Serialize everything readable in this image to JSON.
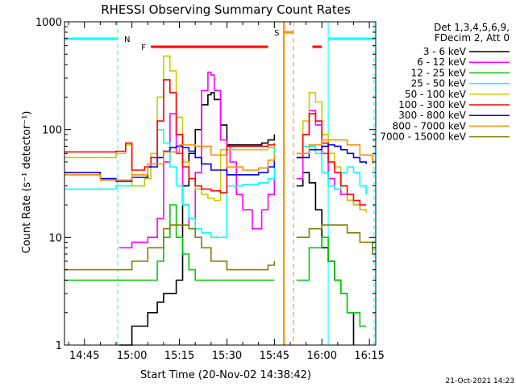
{
  "colors": {
    "frame": "#000000",
    "night": "#00FFFF",
    "flare": "#FF0000",
    "saa": "#FF8C00"
  },
  "chart_data": {
    "type": "line",
    "title": "RHESSI Observing Summary Count Rates",
    "xlabel": "Start Time (20-Nov-02 14:38:42)",
    "ylabel": "Count Rate (s⁻¹ detector⁻¹)",
    "yscale": "log",
    "ylim": [
      1,
      1000
    ],
    "xlim": [
      "14:38:42",
      "16:17:00"
    ],
    "x_ticks": [
      "14:45",
      "15:00",
      "15:15",
      "15:30",
      "15:45",
      "16:00",
      "16:15"
    ],
    "y_ticks": [
      "1",
      "10",
      "100",
      "1000"
    ],
    "legend_position": "top-right",
    "legend_header": [
      "Det 1,3,4,5,6,9,",
      "FDecim 2, Att 0"
    ],
    "footer_date": "21-Oct-2021 14:23",
    "grid": false,
    "annotations": [
      {
        "label": "N",
        "color": "#00FFFF",
        "kind": "night",
        "ranges": [
          [
            "14:38:42",
            "14:55:30"
          ],
          [
            "16:02:00",
            "16:16:30"
          ]
        ]
      },
      {
        "label": "F",
        "color": "#FF0000",
        "kind": "flare",
        "ranges": [
          [
            "15:06:00",
            "15:43:00"
          ],
          [
            "15:57:00",
            "16:00:00"
          ]
        ]
      },
      {
        "label": "S",
        "color": "#FF8C00",
        "kind": "saa",
        "ranges": [
          [
            "15:48:00",
            "15:51:00"
          ]
        ]
      }
    ],
    "series": [
      {
        "name": "3 - 6 keV",
        "color": "#000000",
        "x": [
          "14:38:42",
          "14:50",
          "14:55",
          "14:56",
          "15:00",
          "15:05",
          "15:08",
          "15:10",
          "15:12",
          "15:14",
          "15:16",
          "15:18",
          "15:20",
          "15:22",
          "15:24",
          "15:25",
          "15:26",
          "15:28",
          "15:30",
          "15:31",
          "15:33",
          "15:35",
          "15:38",
          "15:41",
          "15:43",
          "15:45",
          "15:46",
          "15:47",
          "15:50",
          "15:52",
          "15:54",
          "15:56",
          "15:58",
          "16:00",
          "16:02",
          "16:04",
          "16:06",
          "16:08",
          "16:10",
          "16:12",
          "16:14",
          "16:16"
        ],
        "y": [
          null,
          null,
          null,
          1,
          1.5,
          2,
          2.5,
          3,
          3,
          4,
          30,
          60,
          100,
          170,
          210,
          220,
          190,
          110,
          72,
          72,
          72,
          72,
          72,
          75,
          80,
          90,
          null,
          null,
          null,
          30,
          40,
          32,
          18,
          8,
          6,
          4,
          3,
          2,
          1,
          null,
          null,
          null
        ]
      },
      {
        "name": "6 - 12 keV",
        "color": "#FF00FF",
        "x": [
          "14:38:42",
          "14:55",
          "14:56",
          "15:00",
          "15:05",
          "15:08",
          "15:10",
          "15:12",
          "15:14",
          "15:16",
          "15:18",
          "15:20",
          "15:22",
          "15:24",
          "15:25",
          "15:26",
          "15:28",
          "15:30",
          "15:31",
          "15:33",
          "15:35",
          "15:38",
          "15:41",
          "15:43",
          "15:45",
          "15:46",
          "15:47",
          "15:50",
          "15:52",
          "15:54",
          "15:56",
          "15:58",
          "16:00",
          "16:02",
          "16:04",
          "16:06",
          "16:08",
          "16:10",
          "16:12",
          "16:14",
          "16:16"
        ],
        "y": [
          null,
          null,
          8,
          9,
          10,
          15,
          50,
          140,
          60,
          20,
          12,
          40,
          230,
          340,
          320,
          230,
          80,
          70,
          50,
          25,
          18,
          12,
          18,
          25,
          40,
          null,
          null,
          null,
          35,
          90,
          150,
          110,
          60,
          35,
          28,
          25,
          22,
          20,
          18,
          18,
          null
        ]
      },
      {
        "name": "12 - 25 keV",
        "color": "#00CC00",
        "x": [
          "14:38:42",
          "14:50",
          "14:55",
          "15:00",
          "15:05",
          "15:08",
          "15:10",
          "15:12",
          "15:14",
          "15:16",
          "15:18",
          "15:20",
          "15:25",
          "15:30",
          "15:35",
          "15:40",
          "15:45",
          "15:46",
          "15:47",
          "15:50",
          "15:52",
          "15:56",
          "16:00",
          "16:02",
          "16:04",
          "16:06",
          "16:08",
          "16:10",
          "16:12",
          "16:14",
          "16:16"
        ],
        "y": [
          4,
          4,
          4,
          4,
          4,
          6,
          10,
          20,
          10,
          7,
          5,
          4,
          4,
          4,
          4,
          4,
          4,
          null,
          null,
          null,
          4,
          8,
          10,
          6,
          4,
          3,
          2,
          2,
          1.5,
          1.5,
          null
        ]
      },
      {
        "name": "25 - 50 keV",
        "color": "#00FFFF",
        "x": [
          "14:38:42",
          "14:50",
          "14:55",
          "15:00",
          "15:04",
          "15:06",
          "15:08",
          "15:10",
          "15:12",
          "15:14",
          "15:16",
          "15:18",
          "15:20",
          "15:22",
          "15:25",
          "15:30",
          "15:35",
          "15:40",
          "15:43",
          "15:45",
          "15:46",
          "15:47",
          "15:50",
          "15:52",
          "15:54",
          "15:56",
          "15:58",
          "16:00",
          "16:02",
          "16:04",
          "16:06",
          "16:08",
          "16:10",
          "16:12",
          "16:14",
          "16:16"
        ],
        "y": [
          28,
          28,
          30,
          30,
          35,
          60,
          100,
          75,
          45,
          30,
          20,
          15,
          12,
          11,
          10,
          30,
          31,
          32,
          35,
          70,
          null,
          null,
          null,
          55,
          70,
          70,
          60,
          40,
          30,
          28,
          40,
          45,
          40,
          30,
          25,
          null
        ]
      },
      {
        "name": "50 - 100 keV",
        "color": "#CCCC00",
        "x": [
          "14:38:42",
          "14:50",
          "14:55",
          "14:58",
          "15:00",
          "15:04",
          "15:06",
          "15:08",
          "15:10",
          "15:12",
          "15:14",
          "15:16",
          "15:18",
          "15:20",
          "15:22",
          "15:24",
          "15:26",
          "15:28",
          "15:30",
          "15:33",
          "15:36",
          "15:40",
          "15:43",
          "15:45",
          "15:46",
          "15:47",
          "15:50",
          "15:52",
          "15:54",
          "15:56",
          "15:58",
          "16:00",
          "16:02",
          "16:04",
          "16:06",
          "16:08",
          "16:10",
          "16:12",
          "16:14",
          "16:16"
        ],
        "y": [
          55,
          55,
          60,
          72,
          30,
          35,
          60,
          200,
          480,
          350,
          130,
          50,
          35,
          28,
          25,
          23,
          22,
          65,
          65,
          65,
          65,
          65,
          68,
          75,
          null,
          null,
          null,
          60,
          120,
          220,
          180,
          90,
          60,
          45,
          30,
          22,
          20,
          18,
          17,
          null
        ]
      },
      {
        "name": "100 - 300 keV",
        "color": "#FF0000",
        "x": [
          "14:38:42",
          "14:50",
          "14:55",
          "14:58",
          "15:00",
          "15:04",
          "15:06",
          "15:08",
          "15:10",
          "15:12",
          "15:14",
          "15:16",
          "15:18",
          "15:20",
          "15:22",
          "15:25",
          "15:28",
          "15:30",
          "15:33",
          "15:36",
          "15:40",
          "15:43",
          "15:45",
          "15:46",
          "15:47",
          "15:50",
          "15:52",
          "15:54",
          "15:56",
          "15:58",
          "16:00",
          "16:02",
          "16:04",
          "16:06",
          "16:08",
          "16:10",
          "16:12",
          "16:14",
          "16:16"
        ],
        "y": [
          62,
          62,
          63,
          75,
          42,
          45,
          55,
          120,
          290,
          220,
          90,
          45,
          35,
          30,
          28,
          27,
          26,
          70,
          70,
          70,
          70,
          72,
          75,
          null,
          null,
          null,
          55,
          90,
          140,
          120,
          75,
          50,
          40,
          30,
          25,
          22,
          20,
          20,
          null
        ]
      },
      {
        "name": "300 - 800 keV",
        "color": "#0000FF",
        "x": [
          "14:38:42",
          "14:50",
          "14:55",
          "15:00",
          "15:05",
          "15:08",
          "15:10",
          "15:12",
          "15:14",
          "15:16",
          "15:18",
          "15:20",
          "15:22",
          "15:25",
          "15:30",
          "15:35",
          "15:40",
          "15:43",
          "15:45",
          "15:46",
          "15:47",
          "15:50",
          "15:52",
          "15:56",
          "16:00",
          "16:02",
          "16:04",
          "16:06",
          "16:08",
          "16:10",
          "16:12",
          "16:14",
          "16:16"
        ],
        "y": [
          40,
          35,
          33,
          36,
          45,
          55,
          63,
          68,
          70,
          68,
          63,
          55,
          48,
          42,
          38,
          38,
          40,
          45,
          52,
          null,
          null,
          null,
          55,
          65,
          70,
          72,
          70,
          65,
          60,
          55,
          50,
          48,
          null
        ]
      },
      {
        "name": "800 - 7000 keV",
        "color": "#FF8C00",
        "x": [
          "14:38:42",
          "14:50",
          "14:55",
          "15:00",
          "15:05",
          "15:10",
          "15:15",
          "15:20",
          "15:25",
          "15:30",
          "15:35",
          "15:40",
          "15:43",
          "15:45",
          "15:46",
          "15:47",
          "15:50",
          "15:52",
          "15:56",
          "16:00",
          "16:04",
          "16:08",
          "16:12",
          "16:16"
        ],
        "y": [
          38,
          34,
          34,
          38,
          48,
          62,
          72,
          70,
          58,
          45,
          42,
          44,
          52,
          60,
          null,
          null,
          null,
          60,
          72,
          80,
          80,
          72,
          58,
          48
        ]
      },
      {
        "name": "7000 - 15000 keV",
        "color": "#808000",
        "x": [
          "14:38:42",
          "14:50",
          "14:55",
          "15:00",
          "15:05",
          "15:10",
          "15:12",
          "15:15",
          "15:18",
          "15:20",
          "15:22",
          "15:25",
          "15:30",
          "15:35",
          "15:40",
          "15:43",
          "15:45",
          "15:46",
          "15:47",
          "15:50",
          "15:52",
          "15:56",
          "16:00",
          "16:04",
          "16:08",
          "16:12",
          "16:16"
        ],
        "y": [
          5,
          5,
          5,
          6,
          8,
          12,
          13,
          13,
          12,
          10,
          8,
          6,
          5,
          5,
          5,
          5.5,
          6,
          null,
          null,
          null,
          10,
          12,
          13,
          13,
          11,
          9,
          7
        ]
      }
    ]
  }
}
